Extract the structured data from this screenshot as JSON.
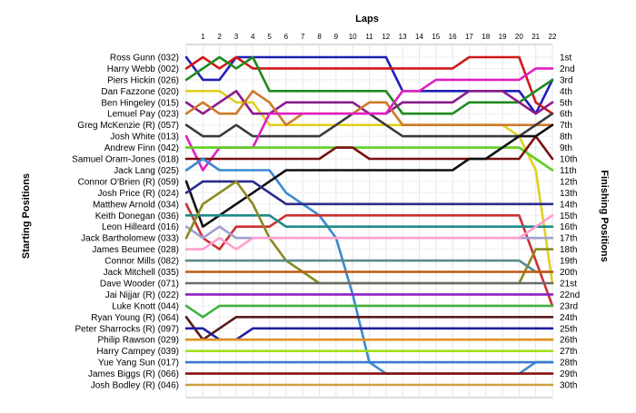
{
  "chart_data": {
    "type": "line",
    "title": "Laps",
    "ylabel_left": "Starting Positions",
    "ylabel_right": "Finishing Positions",
    "laps": [
      "1",
      "2",
      "3",
      "4",
      "5",
      "6",
      "7",
      "8",
      "9",
      "10",
      "11",
      "12",
      "13",
      "14",
      "15",
      "16",
      "17",
      "18",
      "19",
      "20",
      "21",
      "22"
    ],
    "drivers": [
      "Ross Gunn (032)",
      "Harry Webb (002)",
      "Piers Hickin (026)",
      "Dan Fazzone (020)",
      "Ben Hingeley (015)",
      "Lemuel Pay (023)",
      "Greg McKenzie (R) (057)",
      "Josh White (013)",
      "Andrew Finn (042)",
      "Samuel Oram-Jones (018)",
      "Jack Lang (025)",
      "Connor O'Brien (R) (059)",
      "Josh Price (R) (024)",
      "Matthew Arnold (034)",
      "Keith Donegan (036)",
      "Leon Hilleard (016)",
      "Jack Bartholomew (033)",
      "James Beumee (028)",
      "Connor Mills (082)",
      "Jack Mitchell (035)",
      "Dave Wooder (071)",
      "Jai Nijjar (R) (022)",
      "Luke Knott (044)",
      "Ryan Young (R) (064)",
      "Peter Sharrocks (R) (097)",
      "Philip Rawson (029)",
      "Harry Campey (039)",
      "Yue Yang Sun (017)",
      "James Biggs (R) (066)",
      "Josh Bodley (R) (046)"
    ],
    "finish_labels": [
      "1st",
      "2nd",
      "3rd",
      "4th",
      "5th",
      "6th",
      "7th",
      "8th",
      "9th",
      "10th",
      "11th",
      "12th",
      "13th",
      "14th",
      "15th",
      "16th",
      "17th",
      "18th",
      "19th",
      "20th",
      "21st",
      "22nd",
      "23rd",
      "24th",
      "25th",
      "26th",
      "27th",
      "28th",
      "29th",
      "30th"
    ],
    "series": [
      {
        "color": "#1f1fb8",
        "positions": [
          1,
          3,
          3,
          1,
          1,
          1,
          1,
          1,
          1,
          1,
          1,
          1,
          1,
          4,
          4,
          4,
          4,
          4,
          4,
          4,
          4,
          6,
          3
        ]
      },
      {
        "color": "#d01818",
        "positions": [
          2,
          1,
          2,
          1,
          2,
          2,
          2,
          2,
          2,
          2,
          2,
          2,
          2,
          2,
          2,
          2,
          2,
          1,
          1,
          1,
          1,
          5,
          6
        ]
      },
      {
        "color": "#1f8a1f",
        "positions": [
          3,
          2,
          1,
          2,
          1,
          4,
          4,
          4,
          4,
          4,
          4,
          4,
          4,
          6,
          6,
          6,
          6,
          5,
          5,
          5,
          5,
          4,
          3
        ]
      },
      {
        "color": "#e0d020",
        "positions": [
          4,
          4,
          4,
          5,
          5,
          7,
          7,
          7,
          7,
          7,
          7,
          7,
          7,
          7,
          7,
          7,
          7,
          7,
          7,
          7,
          8,
          11,
          21
        ]
      },
      {
        "color": "#8b1a8b",
        "positions": [
          5,
          6,
          5,
          4,
          6,
          6,
          5,
          5,
          5,
          5,
          5,
          6,
          6,
          5,
          5,
          5,
          5,
          4,
          4,
          4,
          5,
          6,
          5
        ]
      },
      {
        "color": "#cc7a2a",
        "positions": [
          6,
          5,
          6,
          6,
          4,
          5,
          7,
          6,
          6,
          6,
          6,
          5,
          5,
          7,
          7,
          7,
          7,
          7,
          7,
          7,
          7,
          7,
          7
        ]
      },
      {
        "color": "#3a3a3a",
        "positions": [
          7,
          8,
          8,
          7,
          8,
          8,
          8,
          8,
          8,
          7,
          6,
          6,
          7,
          8,
          8,
          8,
          8,
          8,
          8,
          8,
          8,
          7,
          6
        ]
      },
      {
        "color": "#e020c0",
        "positions": [
          8,
          11,
          9,
          9,
          9,
          6,
          6,
          6,
          6,
          6,
          6,
          6,
          6,
          4,
          4,
          3,
          3,
          3,
          3,
          3,
          3,
          2,
          2
        ]
      },
      {
        "color": "#60d020",
        "positions": [
          9,
          9,
          9,
          9,
          9,
          9,
          9,
          9,
          9,
          9,
          9,
          9,
          9,
          9,
          9,
          9,
          9,
          9,
          9,
          9,
          9,
          10,
          11
        ]
      },
      {
        "color": "#7a1010",
        "positions": [
          10,
          10,
          10,
          10,
          10,
          10,
          10,
          10,
          10,
          9,
          9,
          10,
          10,
          10,
          10,
          10,
          10,
          10,
          10,
          10,
          10,
          8,
          10
        ]
      },
      {
        "color": "#3a8ad0",
        "positions": [
          11,
          10,
          11,
          11,
          11,
          11,
          13,
          14,
          15,
          17,
          22,
          28,
          29,
          29,
          29,
          29,
          29,
          29,
          29,
          29,
          29,
          28,
          28
        ]
      },
      {
        "color": "#101010",
        "positions": [
          12,
          16,
          15,
          14,
          13,
          12,
          11,
          11,
          11,
          11,
          11,
          11,
          11,
          11,
          11,
          11,
          11,
          10,
          10,
          9,
          8,
          8,
          7
        ]
      },
      {
        "color": "#2a2a8a",
        "positions": [
          13,
          12,
          12,
          12,
          12,
          13,
          14,
          14,
          14,
          14,
          14,
          14,
          14,
          14,
          14,
          14,
          14,
          14,
          14,
          14,
          14,
          14,
          14
        ]
      },
      {
        "color": "#cc3030",
        "positions": [
          14,
          17,
          18,
          16,
          16,
          16,
          15,
          15,
          15,
          15,
          15,
          15,
          15,
          15,
          15,
          15,
          15,
          15,
          15,
          15,
          15,
          19,
          23
        ]
      },
      {
        "color": "#208a8a",
        "positions": [
          15,
          15,
          15,
          15,
          15,
          15,
          16,
          16,
          16,
          16,
          16,
          16,
          16,
          16,
          16,
          16,
          16,
          16,
          16,
          16,
          16,
          16,
          16
        ]
      },
      {
        "color": "#a0a0d0",
        "positions": [
          16,
          17,
          16,
          17,
          17,
          17,
          17,
          17,
          17,
          17,
          17,
          17,
          17,
          17,
          17,
          17,
          17,
          17,
          17,
          17,
          17,
          17,
          17
        ]
      },
      {
        "color": "#8a8a20",
        "positions": [
          17,
          14,
          13,
          12,
          14,
          17,
          19,
          20,
          21,
          21,
          21,
          21,
          21,
          21,
          21,
          21,
          21,
          21,
          21,
          21,
          21,
          18,
          18
        ]
      },
      {
        "color": "#ff9fd0",
        "positions": [
          18,
          18,
          17,
          18,
          17,
          17,
          17,
          17,
          17,
          17,
          17,
          17,
          17,
          17,
          17,
          17,
          17,
          17,
          17,
          17,
          17,
          16,
          15
        ]
      },
      {
        "color": "#5a8a8a",
        "positions": [
          19,
          19,
          19,
          19,
          19,
          19,
          19,
          19,
          19,
          19,
          19,
          19,
          19,
          19,
          19,
          19,
          19,
          19,
          19,
          19,
          19,
          20,
          20
        ]
      },
      {
        "color": "#c05a10",
        "positions": [
          20,
          20,
          20,
          20,
          20,
          20,
          20,
          20,
          20,
          20,
          20,
          20,
          20,
          20,
          20,
          20,
          20,
          20,
          20,
          20,
          20,
          20,
          20
        ]
      },
      {
        "color": "#6a6a6a",
        "positions": [
          21,
          21,
          21,
          21,
          21,
          21,
          21,
          21,
          21,
          21,
          21,
          21,
          21,
          21,
          21,
          21,
          21,
          21,
          21,
          21,
          21,
          21,
          21
        ]
      },
      {
        "color": "#9020c0",
        "positions": [
          22,
          22,
          22,
          22,
          22,
          22,
          22,
          22,
          22,
          22,
          22,
          22,
          22,
          22,
          22,
          22,
          22,
          22,
          22,
          22,
          22,
          22,
          22
        ]
      },
      {
        "color": "#40b040",
        "positions": [
          23,
          24,
          23,
          23,
          23,
          23,
          23,
          23,
          23,
          23,
          23,
          23,
          23,
          23,
          23,
          23,
          23,
          23,
          23,
          23,
          23,
          23,
          23
        ]
      },
      {
        "color": "#5a1a1a",
        "positions": [
          24,
          26,
          25,
          24,
          24,
          24,
          24,
          24,
          24,
          24,
          24,
          24,
          24,
          24,
          24,
          24,
          24,
          24,
          24,
          24,
          24,
          24,
          24
        ]
      },
      {
        "color": "#2020a0",
        "positions": [
          25,
          25,
          26,
          26,
          25,
          25,
          25,
          25,
          25,
          25,
          25,
          25,
          25,
          25,
          25,
          25,
          25,
          25,
          25,
          25,
          25,
          25,
          25
        ]
      },
      {
        "color": "#e09020",
        "positions": [
          26,
          26,
          26,
          26,
          26,
          26,
          26,
          26,
          26,
          26,
          26,
          26,
          26,
          26,
          26,
          26,
          26,
          26,
          26,
          26,
          26,
          26,
          26
        ]
      },
      {
        "color": "#a0e020",
        "positions": [
          27,
          27,
          27,
          27,
          27,
          27,
          27,
          27,
          27,
          27,
          27,
          27,
          27,
          27,
          27,
          27,
          27,
          27,
          27,
          27,
          27,
          27,
          27
        ]
      },
      {
        "color": "#3a7ad0",
        "positions": [
          28,
          28,
          28,
          28,
          28,
          28,
          28,
          28,
          28,
          28,
          28,
          28,
          28,
          28,
          28,
          28,
          28,
          28,
          28,
          28,
          28,
          28,
          28
        ]
      },
      {
        "color": "#8a1010",
        "positions": [
          29,
          29,
          29,
          29,
          29,
          29,
          29,
          29,
          29,
          29,
          29,
          29,
          29,
          29,
          29,
          29,
          29,
          29,
          29,
          29,
          29,
          29,
          29
        ]
      },
      {
        "color": "#d0a040",
        "positions": [
          30,
          30,
          30,
          30,
          30,
          30,
          30,
          30,
          30,
          30,
          30,
          30,
          30,
          30,
          30,
          30,
          30,
          30,
          30,
          30,
          30,
          30,
          30
        ]
      }
    ]
  }
}
